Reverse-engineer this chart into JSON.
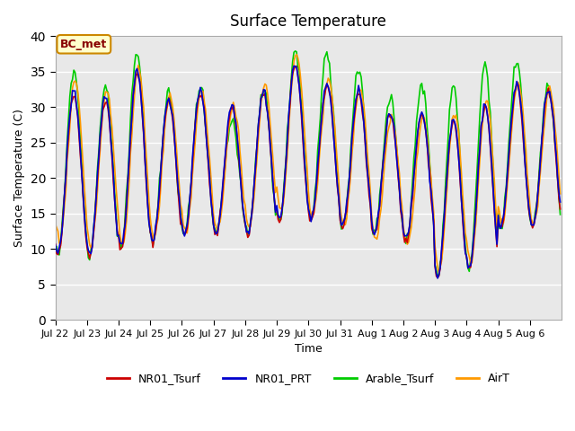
{
  "title": "Surface Temperature",
  "xlabel": "Time",
  "ylabel": "Surface Temperature (C)",
  "ylim": [
    0,
    40
  ],
  "legend_labels": [
    "NR01_Tsurf",
    "NR01_PRT",
    "Arable_Tsurf",
    "AirT"
  ],
  "legend_colors": [
    "#cc0000",
    "#0000cc",
    "#00cc00",
    "#ff9900"
  ],
  "annotation_text": "BC_met",
  "annotation_bg": "#ffffcc",
  "annotation_border": "#cc8800",
  "annotation_text_color": "#880000",
  "background_color": "#e8e8e8",
  "tick_label_dates": [
    "Jul 22",
    "Jul 23",
    "Jul 24",
    "Jul 25",
    "Jul 26",
    "Jul 27",
    "Jul 28",
    "Jul 29",
    "Jul 30",
    "Jul 31",
    "Aug 1",
    "Aug 2",
    "Aug 3",
    "Aug 4",
    "Aug 5",
    "Aug 6"
  ],
  "hours_per_day": 24,
  "num_days": 16,
  "day_max": [
    32,
    31,
    35,
    31,
    32,
    30,
    32,
    36,
    33,
    32,
    29,
    29,
    28,
    30,
    33,
    32
  ],
  "day_min": [
    9,
    9,
    10,
    11,
    12,
    12,
    12,
    14,
    14,
    13,
    12,
    11,
    6,
    7,
    13,
    13
  ],
  "arable_extra_max": [
    3,
    2,
    3,
    1,
    0.5,
    -2,
    0.5,
    2,
    5,
    3,
    2,
    4,
    5,
    6,
    3,
    1
  ],
  "air_offset": [
    1.5,
    1.5,
    0.5,
    0.5,
    0.5,
    0.5,
    1.0,
    1.5,
    1.0,
    0.5,
    -0.5,
    -0.5,
    1.0,
    1.0,
    0.5,
    0.5
  ]
}
